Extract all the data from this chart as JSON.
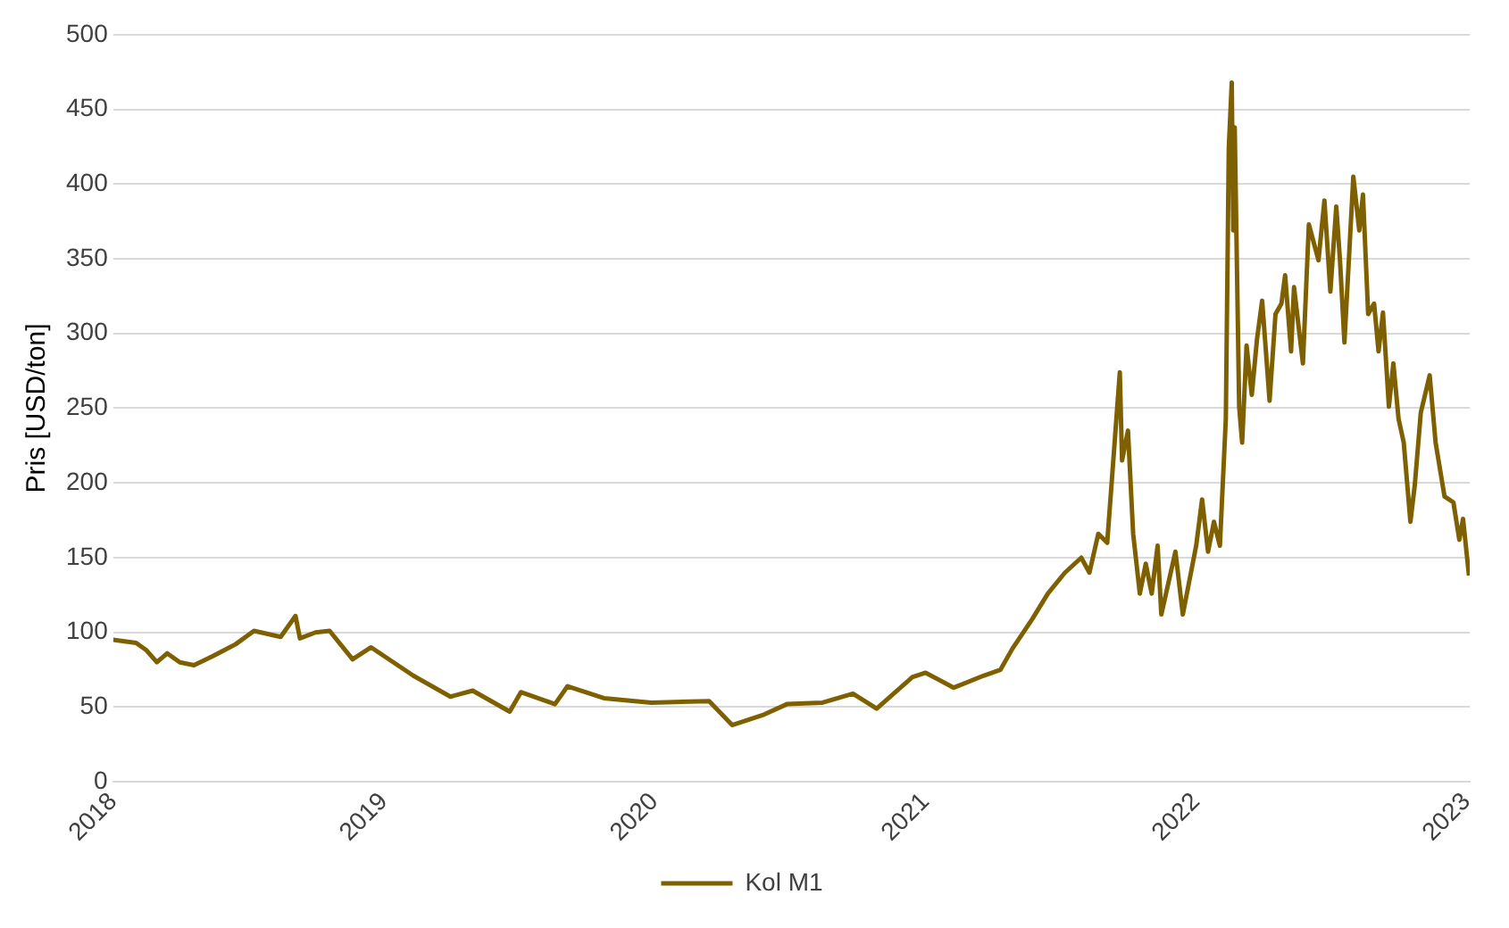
{
  "chart_data": {
    "type": "line",
    "ylabel": "Pris [USD/ton]",
    "xlim": [
      "2018",
      "2023-01-05"
    ],
    "xticks": [
      "2018",
      "2019",
      "2020",
      "2021",
      "2022",
      "2023"
    ],
    "ylim": [
      0,
      500
    ],
    "yticks": [
      0,
      50,
      100,
      150,
      200,
      250,
      300,
      350,
      400,
      450,
      500
    ],
    "grid": "y",
    "legend": "bottom",
    "marker": "none",
    "line_style": "solid",
    "series": [
      {
        "name": "Kol M1",
        "color": "#7f6000",
        "x": [
          "2018-01-01",
          "2018-02-01",
          "2018-02-15",
          "2018-03-01",
          "2018-03-15",
          "2018-04-01",
          "2018-04-20",
          "2018-05-15",
          "2018-06-15",
          "2018-07-10",
          "2018-08-15",
          "2018-09-04",
          "2018-09-10",
          "2018-10-01",
          "2018-10-20",
          "2018-11-20",
          "2018-12-15",
          "2019-02-10",
          "2019-04-01",
          "2019-05-01",
          "2019-06-20",
          "2019-07-05",
          "2019-08-20",
          "2019-09-06",
          "2019-10-25",
          "2019-12-28",
          "2020-03-15",
          "2020-04-15",
          "2020-05-28",
          "2020-06-28",
          "2020-08-15",
          "2020-09-25",
          "2020-10-27",
          "2020-12-14",
          "2021-01-01",
          "2021-02-08",
          "2021-03-20",
          "2021-04-12",
          "2021-04-28",
          "2021-05-25",
          "2021-06-15",
          "2021-07-08",
          "2021-07-30",
          "2021-08-10",
          "2021-08-22",
          "2021-09-03",
          "2021-09-20",
          "2021-09-23",
          "2021-10-01",
          "2021-10-08",
          "2021-10-17",
          "2021-10-25",
          "2021-11-02",
          "2021-11-10",
          "2021-11-15",
          "2021-12-04",
          "2021-12-14",
          "2022-01-01",
          "2022-01-09",
          "2022-01-17",
          "2022-01-25",
          "2022-02-02",
          "2022-02-10",
          "2022-02-14",
          "2022-02-18",
          "2022-02-20",
          "2022-02-22",
          "2022-02-28",
          "2022-03-04",
          "2022-03-10",
          "2022-03-17",
          "2022-03-24",
          "2022-03-31",
          "2022-04-10",
          "2022-04-18",
          "2022-04-26",
          "2022-05-01",
          "2022-05-09",
          "2022-05-13",
          "2022-05-25",
          "2022-06-02",
          "2022-06-15",
          "2022-06-23",
          "2022-07-01",
          "2022-07-09",
          "2022-07-14",
          "2022-07-20",
          "2022-08-01",
          "2022-08-09",
          "2022-08-14",
          "2022-08-21",
          "2022-08-29",
          "2022-09-04",
          "2022-09-10",
          "2022-09-18",
          "2022-09-24",
          "2022-10-01",
          "2022-10-08",
          "2022-10-17",
          "2022-10-23",
          "2022-10-31",
          "2022-11-12",
          "2022-11-20",
          "2022-12-02",
          "2022-12-14",
          "2022-12-22",
          "2022-12-27",
          "2023-01-04"
        ],
        "values": [
          95,
          93,
          88,
          80,
          86,
          80,
          78,
          84,
          92,
          101,
          97,
          111,
          96,
          100,
          101,
          82,
          90,
          71,
          57,
          61,
          47,
          60,
          52,
          64,
          56,
          53,
          54,
          38,
          45,
          52,
          53,
          59,
          49,
          70,
          73,
          63,
          71,
          75,
          89,
          109,
          126,
          140,
          150,
          140,
          166,
          160,
          274,
          215,
          235,
          166,
          126,
          146,
          126,
          158,
          112,
          154,
          112,
          158,
          189,
          154,
          174,
          158,
          243,
          424,
          468,
          369,
          438,
          251,
          227,
          292,
          259,
          296,
          322,
          255,
          313,
          320,
          339,
          288,
          331,
          280,
          373,
          349,
          389,
          328,
          385,
          349,
          294,
          405,
          369,
          393,
          313,
          320,
          288,
          314,
          251,
          280,
          243,
          227,
          174,
          199,
          247,
          272,
          227,
          191,
          187,
          162,
          176,
          138
        ]
      }
    ]
  }
}
